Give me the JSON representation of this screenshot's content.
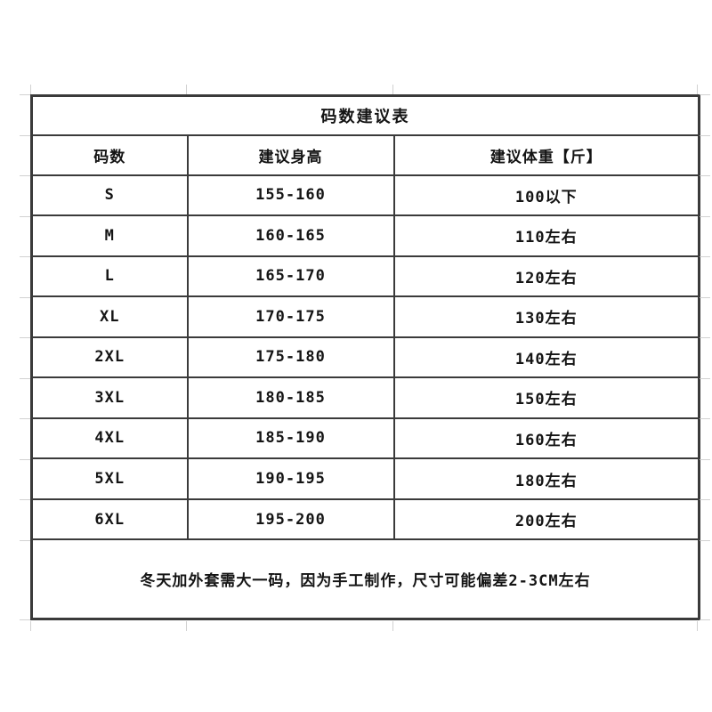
{
  "table": {
    "title": "码数建议表",
    "columns": [
      "码数",
      "建议身高",
      "建议体重【斤】"
    ],
    "rows": [
      {
        "size": "S",
        "height": "155-160",
        "weight": "100以下"
      },
      {
        "size": "M",
        "height": "160-165",
        "weight": "110左右"
      },
      {
        "size": "L",
        "height": "165-170",
        "weight": "120左右"
      },
      {
        "size": "XL",
        "height": "170-175",
        "weight": "130左右"
      },
      {
        "size": "2XL",
        "height": "175-180",
        "weight": "140左右"
      },
      {
        "size": "3XL",
        "height": "180-185",
        "weight": "150左右"
      },
      {
        "size": "4XL",
        "height": "185-190",
        "weight": "160左右"
      },
      {
        "size": "5XL",
        "height": "190-195",
        "weight": "180左右"
      },
      {
        "size": "6XL",
        "height": "195-200",
        "weight": "200左右"
      }
    ],
    "note": "冬天加外套需大一码，因为手工制作，尺寸可能偏差2-3CM左右",
    "border_color": "#3a3a3a",
    "gridline_color": "#c9c9c9",
    "text_color": "#141414",
    "background_color": "#ffffff"
  }
}
